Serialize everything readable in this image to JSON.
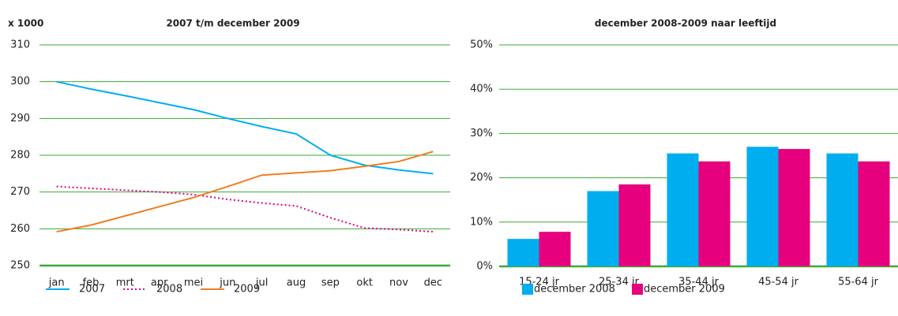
{
  "chart_data": [
    {
      "type": "line",
      "title": "2007 t/m december 2009",
      "y_label": "x 1000",
      "categories": [
        "jan",
        "feb",
        "mrt",
        "apr",
        "mei",
        "jun",
        "jul",
        "aug",
        "sep",
        "okt",
        "nov",
        "dec"
      ],
      "series": [
        {
          "name": "2007",
          "color": "#00aeef",
          "style": "solid",
          "values": [
            300,
            298,
            296.2,
            294.3,
            292.4,
            290,
            287.8,
            285.8,
            280,
            277.3,
            276,
            275
          ]
        },
        {
          "name": "2008",
          "color": "#e6007e",
          "style": "dotted",
          "values": [
            271.5,
            271,
            270.5,
            270,
            269.3,
            268,
            267,
            266.2,
            263,
            260.2,
            259.8,
            259.2
          ]
        },
        {
          "name": "2009",
          "color": "#f07d22",
          "style": "solid",
          "values": [
            259.2,
            261,
            263.5,
            266,
            268.5,
            271.5,
            274.6,
            275.2,
            275.8,
            277,
            278.3,
            281
          ]
        }
      ],
      "ylim": [
        250,
        310
      ],
      "yticks": [
        250,
        260,
        270,
        280,
        290,
        300,
        310
      ],
      "grid": true,
      "legend": "bottom"
    },
    {
      "type": "bar",
      "title": "december 2008-2009 naar leeftijd",
      "categories": [
        "15-24 jr",
        "25-34 jr",
        "35-44 jr",
        "45-54 jr",
        "55-64 jr"
      ],
      "series": [
        {
          "name": "december 2008",
          "color": "#00aeef",
          "values": [
            6.2,
            17,
            25.5,
            27,
            25.5
          ]
        },
        {
          "name": "december 2009",
          "color": "#e6007e",
          "values": [
            7.8,
            18.5,
            23.7,
            26.5,
            23.7
          ]
        }
      ],
      "ylim": [
        0,
        50
      ],
      "yticks": [
        {
          "value": 0,
          "label": "0%"
        },
        {
          "value": 10,
          "label": "10%"
        },
        {
          "value": 20,
          "label": "20%"
        },
        {
          "value": 30,
          "label": "30%"
        },
        {
          "value": 40,
          "label": "40%"
        },
        {
          "value": 50,
          "label": "50%"
        }
      ],
      "grid": true,
      "legend": "bottom"
    }
  ]
}
